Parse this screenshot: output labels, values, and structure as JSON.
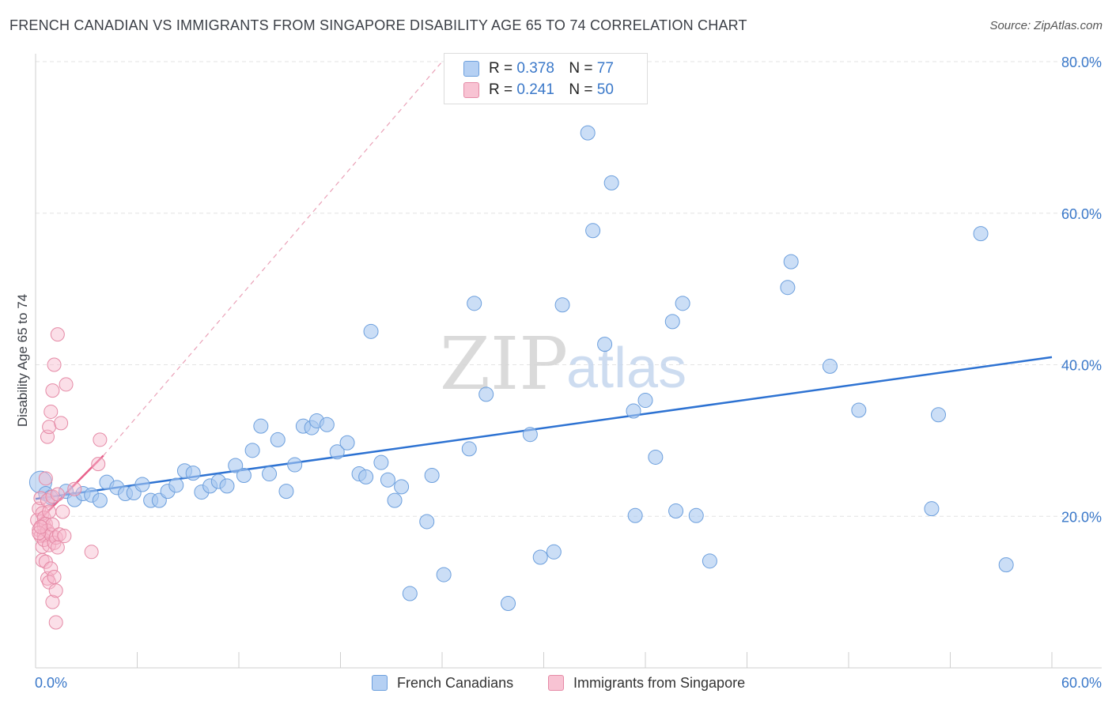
{
  "title": "FRENCH CANADIAN VS IMMIGRANTS FROM SINGAPORE DISABILITY AGE 65 TO 74 CORRELATION CHART",
  "source": "Source: ZipAtlas.com",
  "watermark": {
    "zip": "ZIP",
    "atlas": "atlas"
  },
  "legend": {
    "rows": [
      {
        "r_label": "R =",
        "r_value": "0.378",
        "n_label": "N =",
        "n_value": "77"
      },
      {
        "r_label": "R =",
        "r_value": "0.241",
        "n_label": "N =",
        "n_value": "50"
      }
    ]
  },
  "colors": {
    "blue_fill": "#a9c8f0",
    "blue_stroke": "#6c9fdd",
    "blue_line": "#2d72d2",
    "pink_fill": "#f6b8cb",
    "pink_stroke": "#e58aa6",
    "pink_line": "#e8608a",
    "grid": "#e3e3e3",
    "axis_text": "#3a78c9"
  },
  "chart_data": {
    "type": "scatter",
    "title": "FRENCH CANADIAN VS IMMIGRANTS FROM SINGAPORE DISABILITY AGE 65 TO 74 CORRELATION CHART",
    "xlabel": "",
    "ylabel": "Disability Age 65 to 74",
    "xlim": [
      0,
      60
    ],
    "ylim": [
      0,
      80
    ],
    "x_tick_labels": [
      "0.0%",
      "60.0%"
    ],
    "y_tick_labels": [
      "20.0%",
      "40.0%",
      "60.0%",
      "80.0%"
    ],
    "y_ticks": [
      20,
      40,
      60,
      80
    ],
    "grid": true,
    "legend_position": "top-center",
    "series": [
      {
        "name": "French Canadians",
        "r": 0.378,
        "n": 77,
        "trend": {
          "x": [
            0,
            60
          ],
          "y": [
            22.3,
            41.0
          ]
        },
        "points": [
          [
            0.3,
            24.5
          ],
          [
            0.6,
            23.0
          ],
          [
            0.9,
            22.5
          ],
          [
            1.8,
            23.3
          ],
          [
            2.3,
            22.2
          ],
          [
            2.8,
            23.0
          ],
          [
            3.3,
            22.8
          ],
          [
            3.8,
            22.1
          ],
          [
            4.2,
            24.5
          ],
          [
            4.8,
            23.8
          ],
          [
            5.3,
            23.0
          ],
          [
            5.8,
            23.1
          ],
          [
            6.3,
            24.2
          ],
          [
            6.8,
            22.1
          ],
          [
            7.3,
            22.1
          ],
          [
            7.8,
            23.3
          ],
          [
            8.3,
            24.1
          ],
          [
            8.8,
            26.0
          ],
          [
            9.3,
            25.7
          ],
          [
            9.8,
            23.2
          ],
          [
            10.3,
            24.0
          ],
          [
            10.8,
            24.6
          ],
          [
            11.3,
            24.0
          ],
          [
            11.8,
            26.7
          ],
          [
            12.3,
            25.4
          ],
          [
            12.8,
            28.7
          ],
          [
            13.3,
            31.9
          ],
          [
            13.8,
            25.6
          ],
          [
            14.3,
            30.1
          ],
          [
            14.8,
            23.3
          ],
          [
            15.3,
            26.8
          ],
          [
            15.8,
            31.9
          ],
          [
            16.3,
            31.7
          ],
          [
            16.6,
            32.6
          ],
          [
            17.2,
            32.1
          ],
          [
            17.8,
            28.5
          ],
          [
            18.4,
            29.7
          ],
          [
            19.1,
            25.6
          ],
          [
            19.5,
            25.2
          ],
          [
            19.8,
            44.4
          ],
          [
            20.4,
            27.1
          ],
          [
            20.8,
            24.8
          ],
          [
            21.2,
            22.1
          ],
          [
            21.6,
            23.9
          ],
          [
            22.1,
            9.8
          ],
          [
            23.1,
            19.3
          ],
          [
            23.4,
            25.4
          ],
          [
            24.1,
            12.3
          ],
          [
            25.6,
            28.9
          ],
          [
            25.9,
            48.1
          ],
          [
            26.6,
            36.1
          ],
          [
            27.9,
            8.5
          ],
          [
            29.2,
            30.8
          ],
          [
            29.8,
            14.6
          ],
          [
            30.6,
            15.3
          ],
          [
            31.1,
            47.9
          ],
          [
            32.6,
            70.6
          ],
          [
            32.9,
            57.7
          ],
          [
            33.6,
            42.7
          ],
          [
            34.0,
            64.0
          ],
          [
            35.3,
            33.9
          ],
          [
            35.4,
            20.1
          ],
          [
            36.0,
            35.3
          ],
          [
            36.6,
            27.8
          ],
          [
            37.6,
            45.7
          ],
          [
            37.8,
            20.7
          ],
          [
            38.2,
            48.1
          ],
          [
            39.0,
            20.1
          ],
          [
            39.8,
            14.1
          ],
          [
            44.4,
            50.2
          ],
          [
            44.6,
            53.6
          ],
          [
            46.9,
            39.8
          ],
          [
            48.6,
            34.0
          ],
          [
            52.9,
            21.0
          ],
          [
            53.3,
            33.4
          ],
          [
            55.8,
            57.3
          ],
          [
            57.3,
            13.6
          ]
        ]
      },
      {
        "name": "Immigrants from Singapore",
        "r": 0.241,
        "n": 50,
        "trend": {
          "x": [
            0,
            4.0
          ],
          "y": [
            19.0,
            28.0
          ]
        },
        "trend_extension": {
          "x": [
            4.0,
            24.0
          ],
          "y": [
            28.0,
            80.0
          ]
        },
        "points": [
          [
            0.1,
            19.5
          ],
          [
            0.2,
            18.2
          ],
          [
            0.2,
            21.0
          ],
          [
            0.3,
            17.4
          ],
          [
            0.3,
            22.4
          ],
          [
            0.4,
            16.0
          ],
          [
            0.4,
            20.4
          ],
          [
            0.4,
            14.2
          ],
          [
            0.5,
            18.7
          ],
          [
            0.5,
            17.5
          ],
          [
            0.5,
            19.8
          ],
          [
            0.5,
            16.9
          ],
          [
            0.6,
            25.0
          ],
          [
            0.6,
            14.0
          ],
          [
            0.6,
            19.0
          ],
          [
            0.7,
            11.8
          ],
          [
            0.7,
            18.1
          ],
          [
            0.7,
            22.1
          ],
          [
            0.7,
            30.5
          ],
          [
            0.8,
            11.3
          ],
          [
            0.8,
            20.6
          ],
          [
            0.8,
            16.2
          ],
          [
            0.8,
            31.8
          ],
          [
            0.9,
            33.8
          ],
          [
            0.9,
            13.1
          ],
          [
            0.9,
            17.6
          ],
          [
            1.0,
            8.7
          ],
          [
            1.0,
            18.9
          ],
          [
            1.0,
            36.6
          ],
          [
            1.0,
            22.6
          ],
          [
            1.1,
            16.5
          ],
          [
            1.1,
            40.0
          ],
          [
            1.1,
            12.0
          ],
          [
            1.2,
            17.2
          ],
          [
            1.2,
            10.2
          ],
          [
            1.2,
            6.0
          ],
          [
            1.3,
            44.0
          ],
          [
            1.3,
            15.9
          ],
          [
            1.3,
            22.9
          ],
          [
            1.4,
            17.6
          ],
          [
            1.5,
            32.3
          ],
          [
            1.6,
            20.6
          ],
          [
            1.7,
            17.4
          ],
          [
            1.8,
            37.4
          ],
          [
            0.2,
            17.8
          ],
          [
            0.3,
            18.6
          ],
          [
            2.3,
            23.6
          ],
          [
            3.3,
            15.3
          ],
          [
            3.7,
            26.9
          ],
          [
            3.8,
            30.1
          ]
        ]
      }
    ]
  }
}
